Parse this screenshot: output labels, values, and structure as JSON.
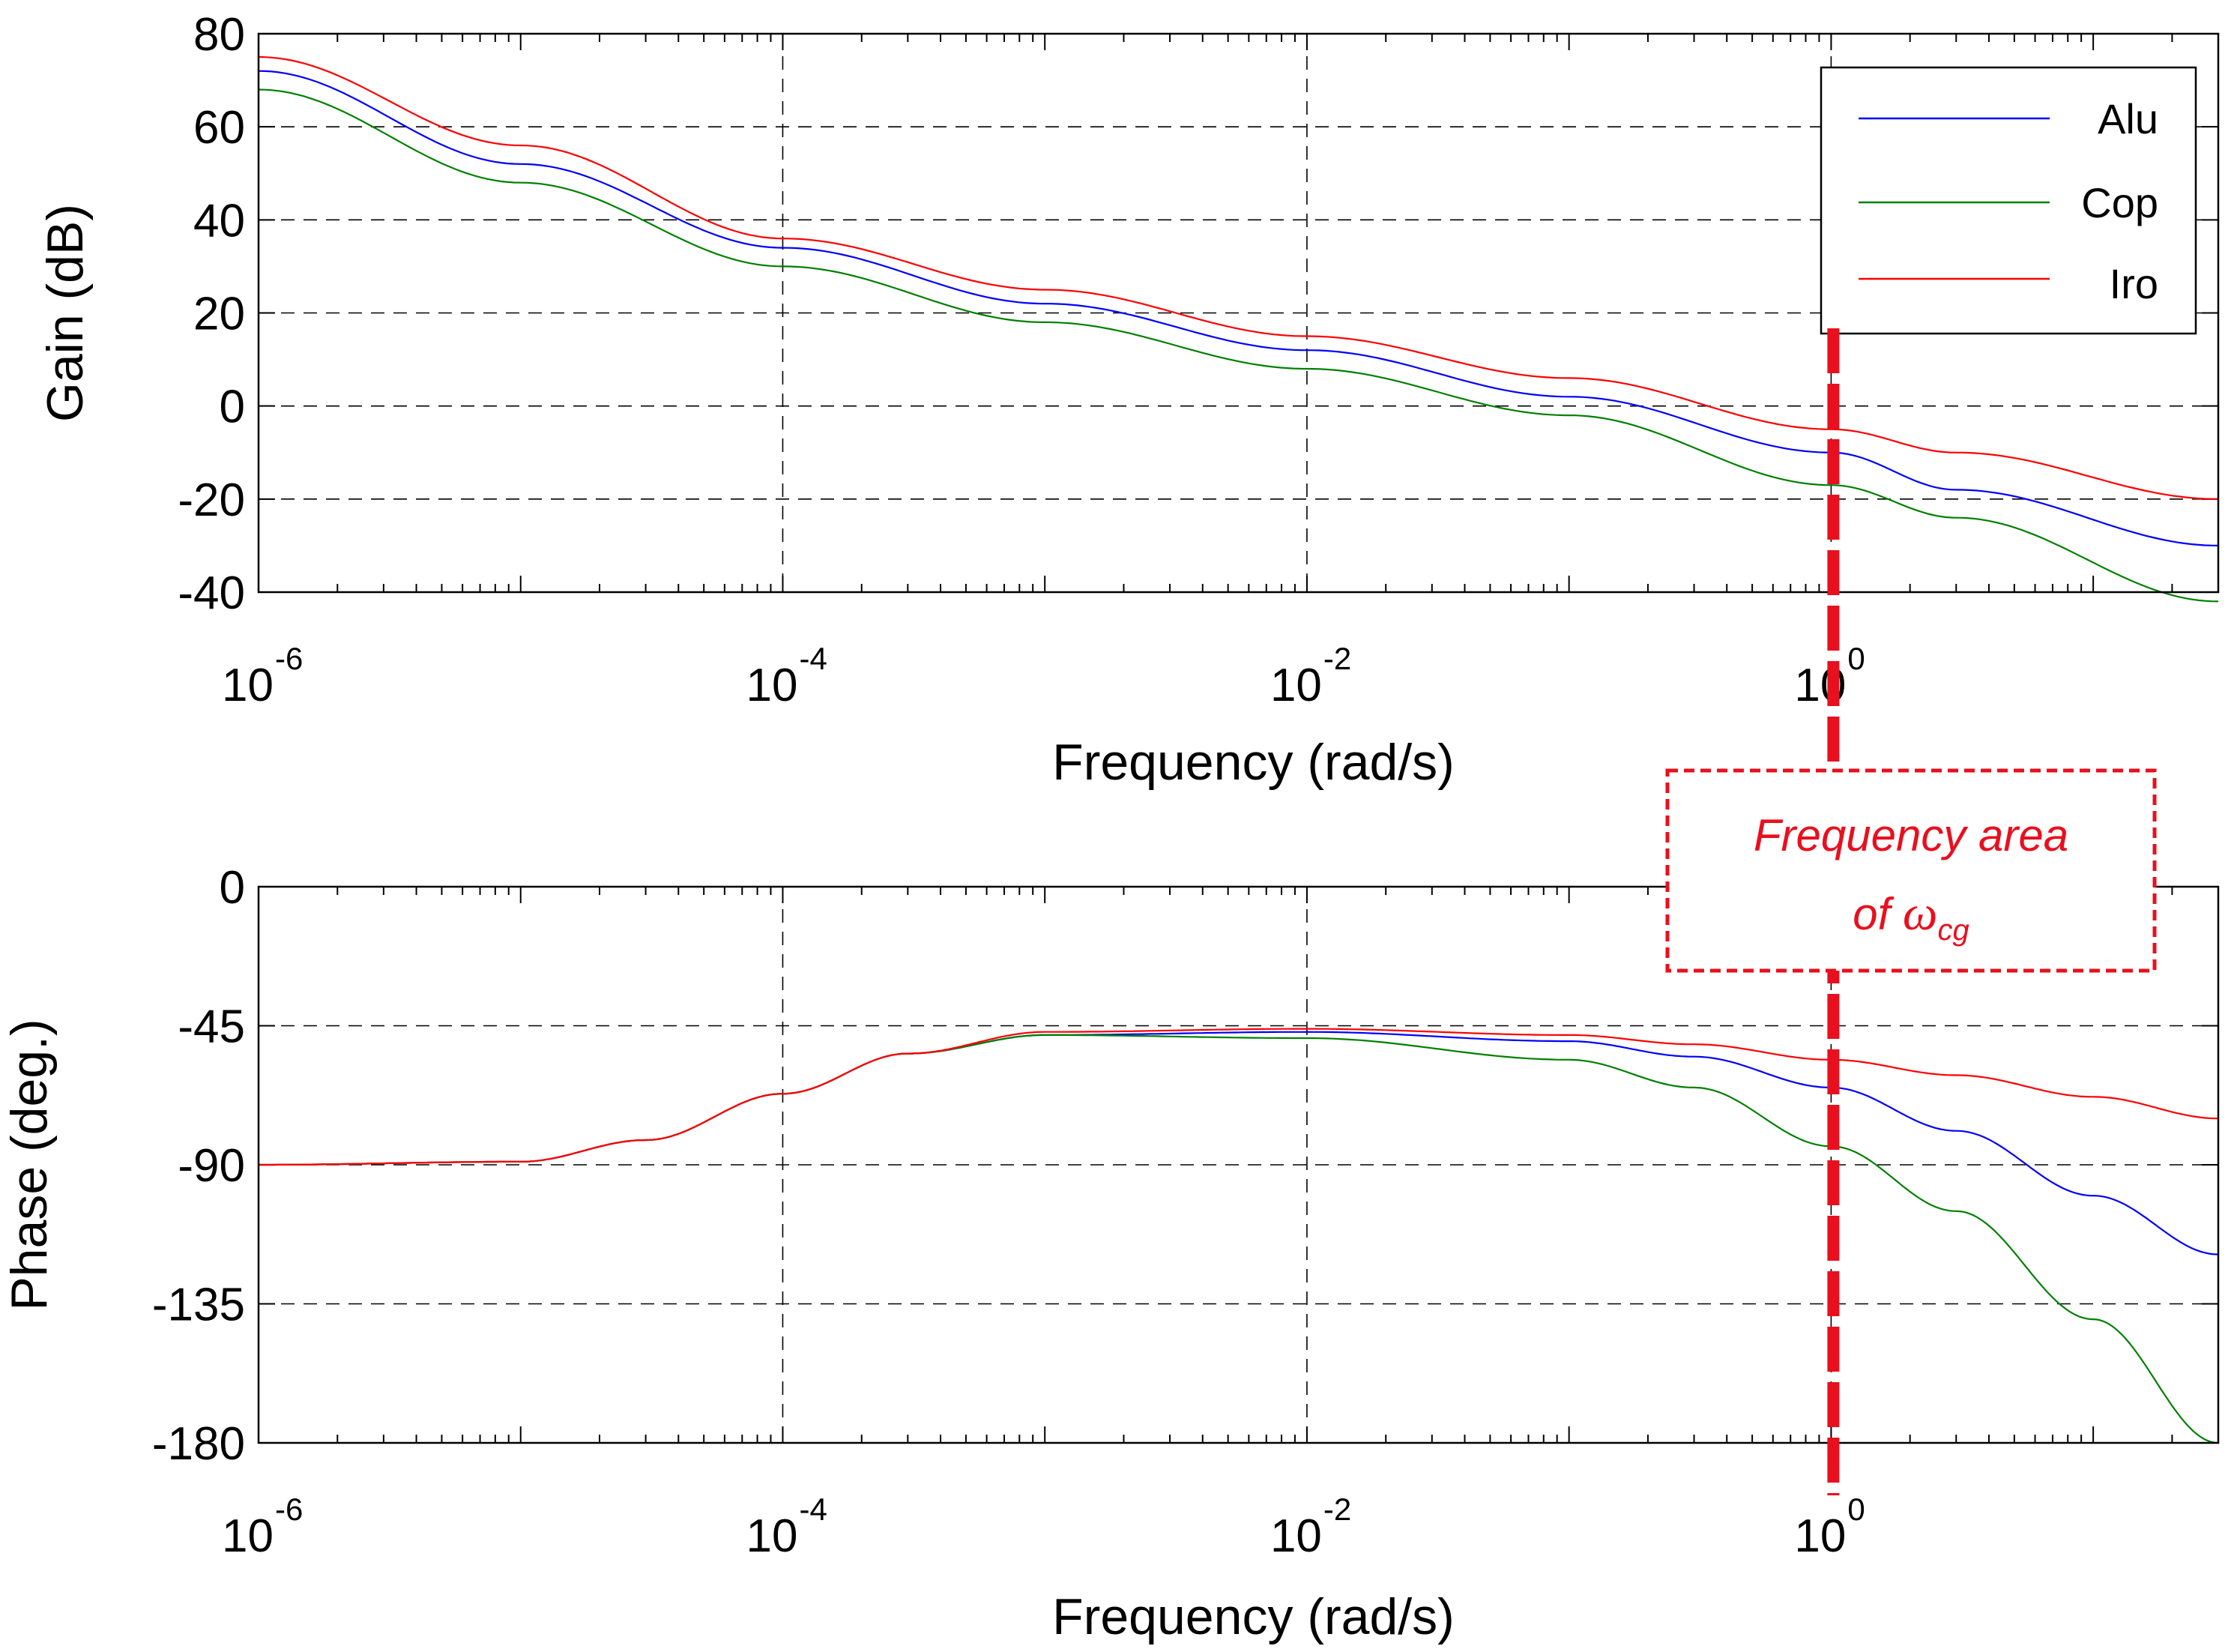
{
  "colors": {
    "alu": "#0000ff",
    "cop": "#008000",
    "iro": "#ff0000",
    "annotation": "#e8101e",
    "grid": "#000000"
  },
  "legend": {
    "items": [
      {
        "label": "Alu",
        "color": "#0000ff"
      },
      {
        "label": "Cop",
        "color": "#008000"
      },
      {
        "label": "Iro",
        "color": "#ff0000"
      }
    ]
  },
  "annotation": {
    "line1": "Frequency area",
    "line2_prefix": "of ",
    "omega": "ω",
    "subscript": "cg",
    "frequency": 1
  },
  "chart_data": [
    {
      "type": "line",
      "name": "gain",
      "xscale": "log",
      "xlim": [
        1e-06,
        30
      ],
      "ylim": [
        -40,
        80
      ],
      "xlabel": "Frequency (rad/s)",
      "ylabel": "Gain (dB)",
      "grid": true,
      "yticks": [
        80,
        60,
        40,
        20,
        0,
        -20,
        -40
      ],
      "ytick_labels": [
        "80",
        "60",
        "40",
        "20",
        "0",
        "-20",
        "-40"
      ],
      "xticks": [
        1e-06,
        0.0001,
        0.01,
        1
      ],
      "xtick_bases": [
        "10",
        "10",
        "10",
        "10"
      ],
      "xtick_exps": [
        "-6",
        "-4",
        "-2",
        "0"
      ],
      "series": [
        {
          "name": "Alu",
          "points": [
            [
              1e-06,
              72
            ],
            [
              1e-05,
              52
            ],
            [
              0.0001,
              34
            ],
            [
              0.001,
              22
            ],
            [
              0.01,
              12
            ],
            [
              0.1,
              2
            ],
            [
              1,
              -10
            ],
            [
              3,
              -18
            ],
            [
              30,
              -30
            ]
          ]
        },
        {
          "name": "Cop",
          "points": [
            [
              1e-06,
              68
            ],
            [
              1e-05,
              48
            ],
            [
              0.0001,
              30
            ],
            [
              0.001,
              18
            ],
            [
              0.01,
              8
            ],
            [
              0.1,
              -2
            ],
            [
              1,
              -17
            ],
            [
              3,
              -24
            ],
            [
              30,
              -42
            ]
          ]
        },
        {
          "name": "Iro",
          "points": [
            [
              1e-06,
              75
            ],
            [
              1e-05,
              56
            ],
            [
              0.0001,
              36
            ],
            [
              0.001,
              25
            ],
            [
              0.01,
              15
            ],
            [
              0.1,
              6
            ],
            [
              1,
              -5
            ],
            [
              3,
              -10
            ],
            [
              30,
              -20
            ]
          ]
        }
      ]
    },
    {
      "type": "line",
      "name": "phase",
      "xscale": "log",
      "xlim": [
        1e-06,
        30
      ],
      "ylim": [
        -180,
        0
      ],
      "xlabel": "Frequency (rad/s)",
      "ylabel": "Phase (deg.)",
      "grid": true,
      "yticks": [
        0,
        -45,
        -90,
        -135,
        -180
      ],
      "ytick_labels": [
        "0",
        "-45",
        "-90",
        "-135",
        "-180"
      ],
      "xticks": [
        1e-06,
        0.0001,
        0.01,
        1
      ],
      "xtick_bases": [
        "10",
        "10",
        "10",
        "10"
      ],
      "xtick_exps": [
        "-6",
        "-4",
        "-2",
        "0"
      ],
      "series": [
        {
          "name": "Alu",
          "points": [
            [
              1e-06,
              -90
            ],
            [
              1e-05,
              -89
            ],
            [
              3e-05,
              -82
            ],
            [
              0.0001,
              -67
            ],
            [
              0.0003,
              -54
            ],
            [
              0.001,
              -48
            ],
            [
              0.01,
              -47
            ],
            [
              0.1,
              -50
            ],
            [
              0.3,
              -55
            ],
            [
              1,
              -65
            ],
            [
              3,
              -79
            ],
            [
              10,
              -100
            ],
            [
              30,
              -119
            ]
          ]
        },
        {
          "name": "Cop",
          "points": [
            [
              1e-06,
              -90
            ],
            [
              1e-05,
              -89
            ],
            [
              3e-05,
              -82
            ],
            [
              0.0001,
              -67
            ],
            [
              0.0003,
              -54
            ],
            [
              0.001,
              -48
            ],
            [
              0.01,
              -49
            ],
            [
              0.1,
              -56
            ],
            [
              0.3,
              -65
            ],
            [
              1,
              -84
            ],
            [
              3,
              -105
            ],
            [
              10,
              -140
            ],
            [
              30,
              -180
            ]
          ]
        },
        {
          "name": "Iro",
          "points": [
            [
              1e-06,
              -90
            ],
            [
              1e-05,
              -89
            ],
            [
              3e-05,
              -82
            ],
            [
              0.0001,
              -67
            ],
            [
              0.0003,
              -54
            ],
            [
              0.001,
              -47
            ],
            [
              0.01,
              -46
            ],
            [
              0.1,
              -48
            ],
            [
              0.3,
              -51
            ],
            [
              1,
              -56
            ],
            [
              3,
              -61
            ],
            [
              10,
              -68
            ],
            [
              30,
              -75
            ]
          ]
        }
      ]
    }
  ]
}
